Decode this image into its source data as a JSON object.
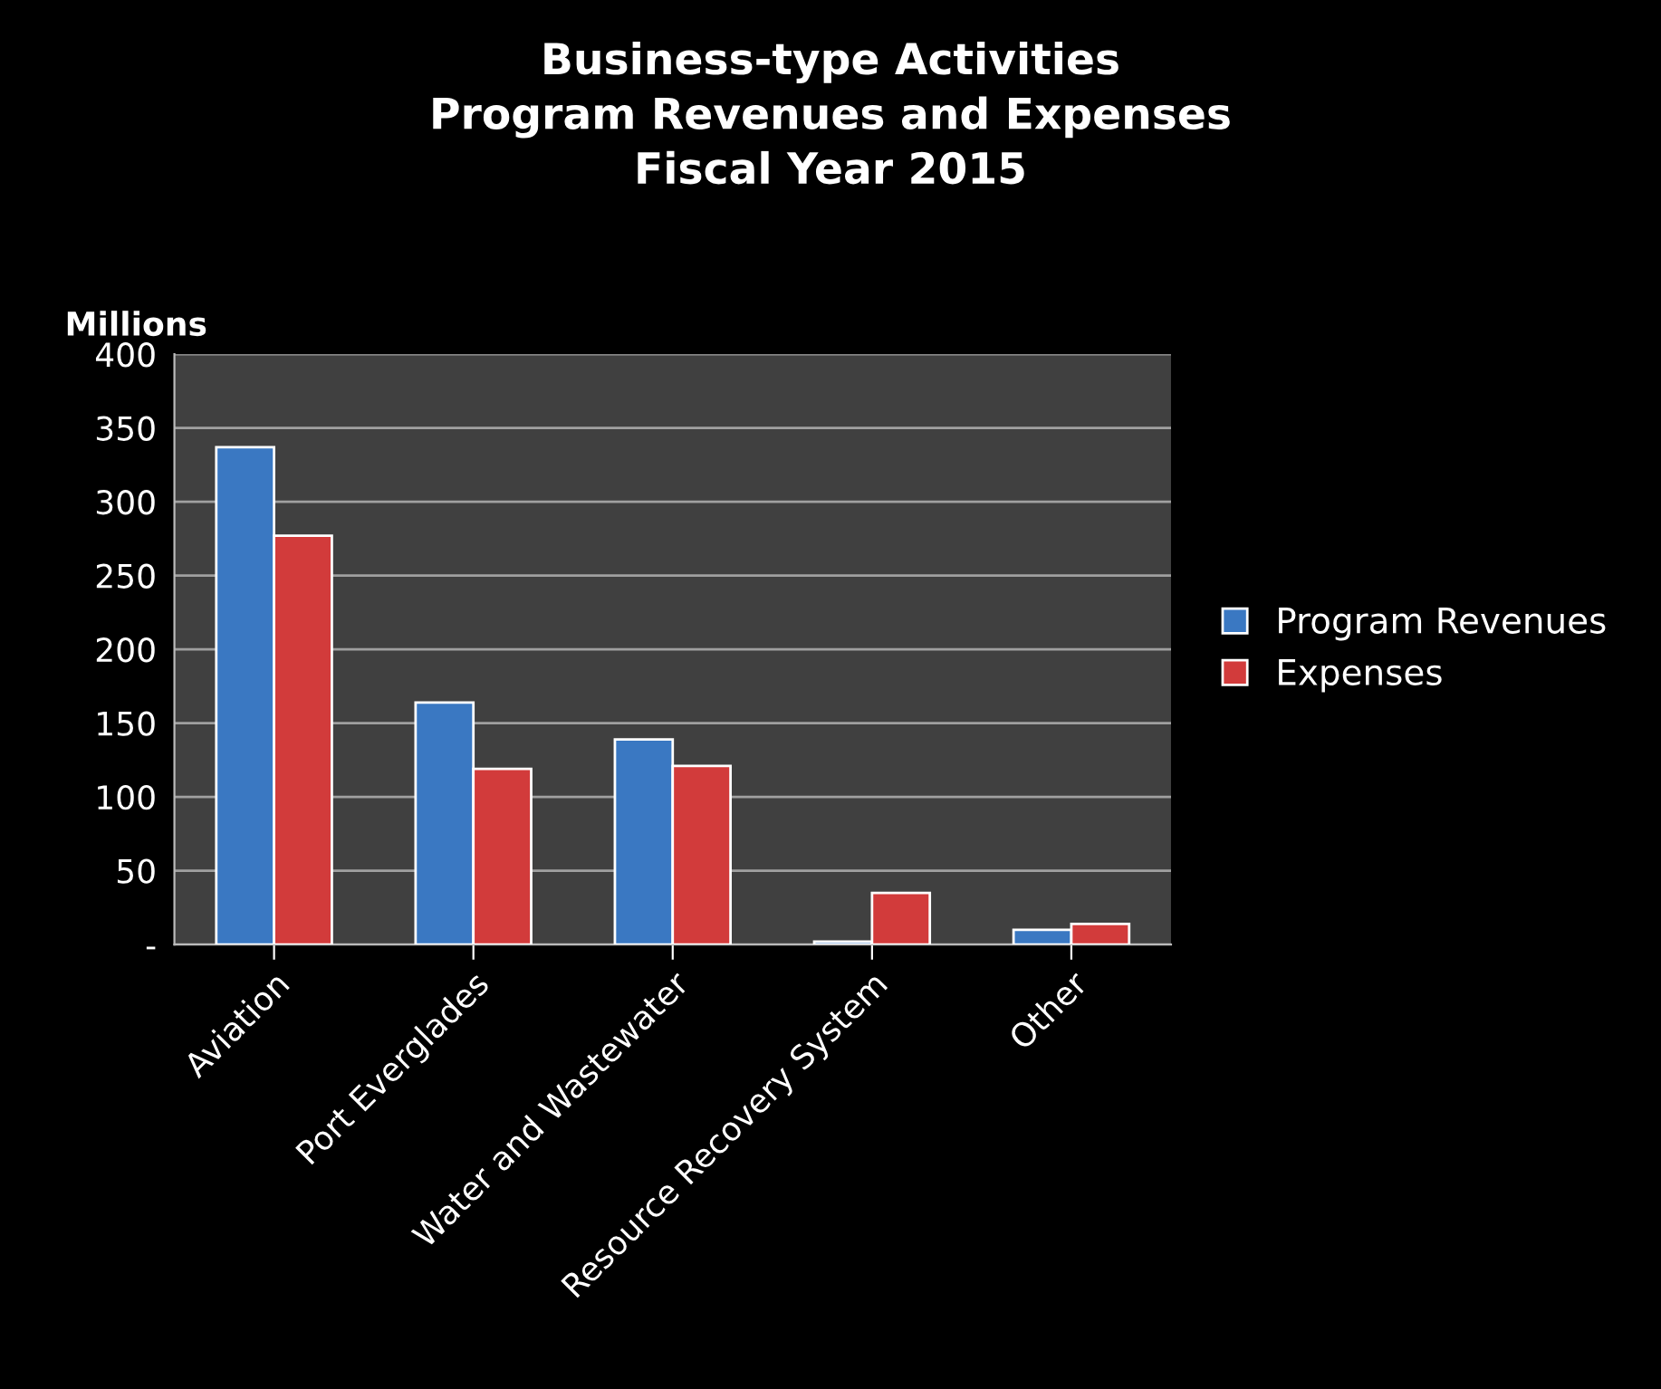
{
  "chart_data": {
    "type": "bar",
    "title": "Business-type Activities\nProgram Revenues and Expenses\nFiscal Year 2015",
    "ylabel": "Millions",
    "categories": [
      "Aviation",
      "Port Everglades",
      "Water and Wastewater",
      "Resource Recovery System",
      "Other"
    ],
    "series": [
      {
        "name": "Program Revenues",
        "color": "#3a78c2",
        "values": [
          337,
          164,
          139,
          2,
          10
        ]
      },
      {
        "name": "Expenses",
        "color": "#d23b3b",
        "values": [
          277,
          119,
          121,
          35,
          14
        ]
      }
    ],
    "ylim": [
      0,
      400
    ],
    "yticks": [
      {
        "value": 0,
        "label": "-"
      },
      50,
      100,
      150,
      200,
      250,
      300,
      350,
      400
    ],
    "grid": "y",
    "legend": "right"
  }
}
